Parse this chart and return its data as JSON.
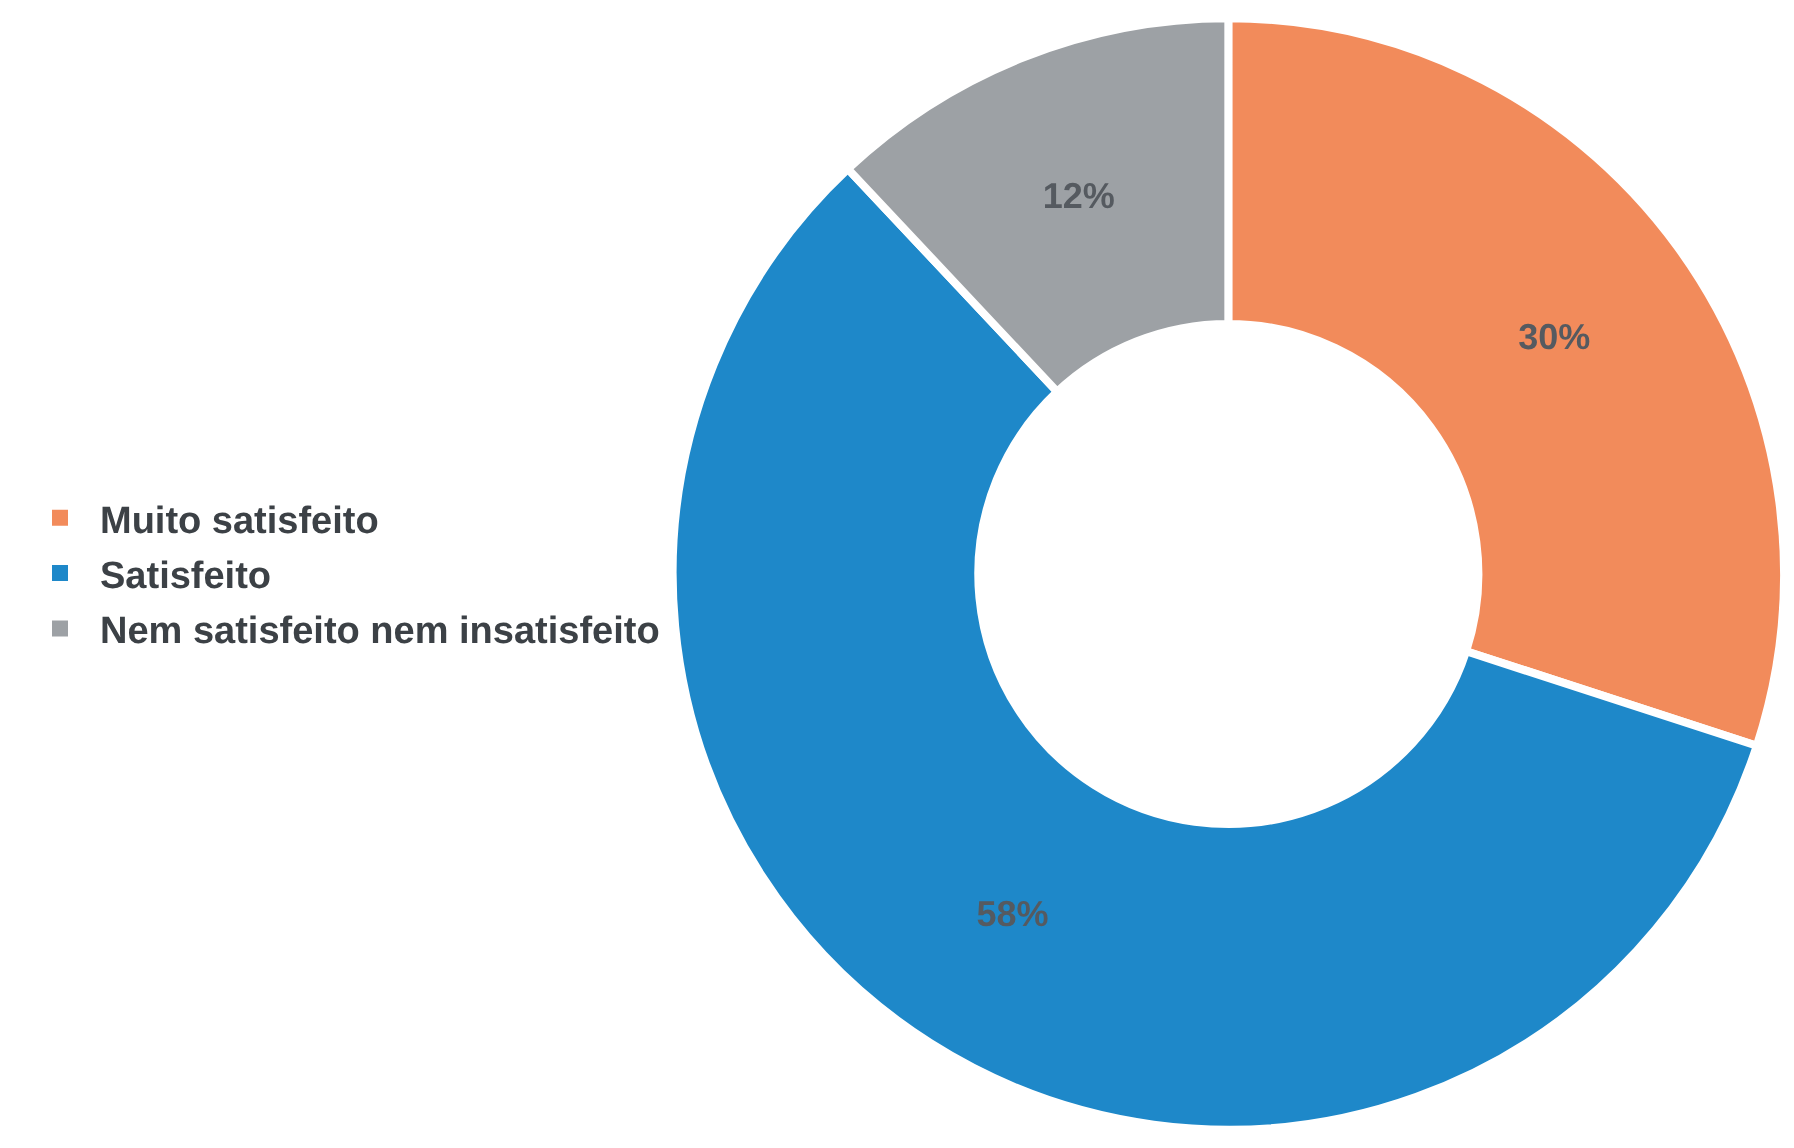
{
  "chart_data": {
    "type": "donut",
    "categories": [
      "Muito satisfeito",
      "Satisfeito",
      "Nem satisfeito nem insatisfeito"
    ],
    "values": [
      30,
      58,
      12
    ],
    "colors": [
      "#f28b5b",
      "#1e88c9",
      "#9da1a5"
    ],
    "value_labels": [
      "30%",
      "58%",
      "12%"
    ],
    "legend": "left"
  }
}
